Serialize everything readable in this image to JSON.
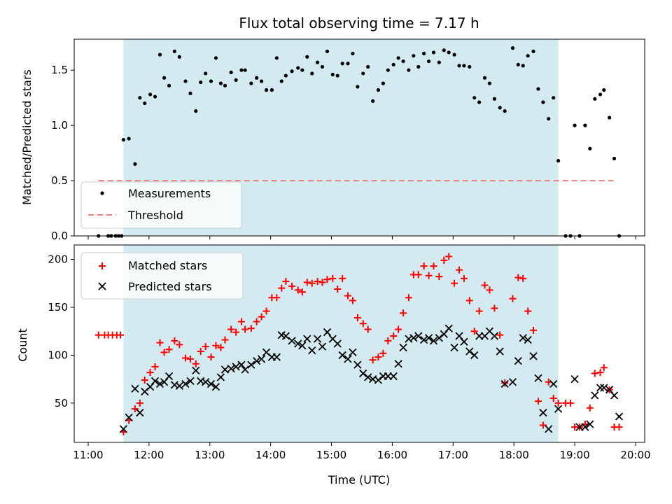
{
  "title": "Flux total observing time = 7.17 h",
  "colors": {
    "shade": "#d3eaf0",
    "measurement": "#000000",
    "threshold": "#f08080",
    "matched": "#ff0000",
    "predicted": "#000000"
  },
  "chart_data": [
    {
      "type": "scatter",
      "ylabel": "Matched/Predicted stars",
      "xlim": [
        10.77,
        20.15
      ],
      "ylim": [
        0,
        1.78
      ],
      "y_ticks": [
        0.0,
        0.5,
        1.0,
        1.5
      ],
      "y_tick_labels": [
        "0.0",
        "0.5",
        "1.0",
        "1.5"
      ],
      "legend": {
        "position": "lower-left",
        "items": [
          "Measurements",
          "Threshold"
        ]
      },
      "shaded_region": [
        11.58,
        18.73
      ],
      "threshold": {
        "name": "Threshold",
        "value": 0.5,
        "x_range": [
          11.17,
          19.67
        ]
      },
      "series": [
        {
          "name": "Measurements",
          "x": [
            11.17,
            11.33,
            11.38,
            11.45,
            11.5,
            11.55,
            11.58,
            11.67,
            11.77,
            11.85,
            11.93,
            12.02,
            12.1,
            12.18,
            12.25,
            12.33,
            12.42,
            12.5,
            12.6,
            12.68,
            12.77,
            12.85,
            12.93,
            13.02,
            13.1,
            13.18,
            13.25,
            13.35,
            13.43,
            13.52,
            13.58,
            13.68,
            13.77,
            13.85,
            13.93,
            14.02,
            14.1,
            14.18,
            14.25,
            14.35,
            14.45,
            14.52,
            14.6,
            14.68,
            14.77,
            14.85,
            14.93,
            15.02,
            15.1,
            15.18,
            15.27,
            15.35,
            15.43,
            15.52,
            15.6,
            15.68,
            15.77,
            15.85,
            15.93,
            16.02,
            16.1,
            16.18,
            16.27,
            16.35,
            16.43,
            16.52,
            16.6,
            16.68,
            16.77,
            16.85,
            16.93,
            17.02,
            17.1,
            17.18,
            17.27,
            17.35,
            17.43,
            17.52,
            17.6,
            17.68,
            17.77,
            17.85,
            17.98,
            18.07,
            18.15,
            18.23,
            18.32,
            18.4,
            18.48,
            18.57,
            18.65,
            18.73,
            18.85,
            18.93,
            19.0,
            19.08,
            19.17,
            19.25,
            19.33,
            19.42,
            19.48,
            19.57,
            19.65,
            19.73
          ],
          "y": [
            0.0,
            0.0,
            0.0,
            0.0,
            0.0,
            0.0,
            0.87,
            0.88,
            0.65,
            1.25,
            1.2,
            1.28,
            1.26,
            1.64,
            1.43,
            1.36,
            1.67,
            1.62,
            1.4,
            1.29,
            1.13,
            1.39,
            1.47,
            1.4,
            1.61,
            1.38,
            1.36,
            1.48,
            1.41,
            1.5,
            1.5,
            1.38,
            1.43,
            1.4,
            1.32,
            1.32,
            1.61,
            1.4,
            1.45,
            1.49,
            1.52,
            1.5,
            1.62,
            1.47,
            1.57,
            1.53,
            1.67,
            1.46,
            1.45,
            1.56,
            1.56,
            1.65,
            1.35,
            1.47,
            1.53,
            1.22,
            1.32,
            1.38,
            1.5,
            1.55,
            1.61,
            1.58,
            1.5,
            1.63,
            1.53,
            1.65,
            1.58,
            1.66,
            1.57,
            1.68,
            1.66,
            1.64,
            1.54,
            1.54,
            1.53,
            1.25,
            1.21,
            1.43,
            1.38,
            1.24,
            1.16,
            1.13,
            1.7,
            1.55,
            1.54,
            1.63,
            1.67,
            1.33,
            1.21,
            1.06,
            1.25,
            0.68,
            0.0,
            0.0,
            1.0,
            0.0,
            1.0,
            0.79,
            1.24,
            1.28,
            1.32,
            1.07,
            0.7,
            0.0
          ]
        }
      ]
    },
    {
      "type": "scatter",
      "xlabel": "Time (UTC)",
      "ylabel": "Count",
      "xlim": [
        10.77,
        20.15
      ],
      "ylim": [
        9,
        215
      ],
      "x_ticks": [
        11,
        12,
        13,
        14,
        15,
        16,
        17,
        18,
        19,
        20
      ],
      "x_tick_labels": [
        "11:00",
        "12:00",
        "13:00",
        "14:00",
        "15:00",
        "16:00",
        "17:00",
        "18:00",
        "19:00",
        "20:00"
      ],
      "y_ticks": [
        50,
        100,
        150,
        200
      ],
      "y_tick_labels": [
        "50",
        "100",
        "150",
        "200"
      ],
      "legend": {
        "position": "upper-left",
        "items": [
          "Matched stars",
          "Predicted stars"
        ]
      },
      "shaded_region": [
        11.58,
        18.73
      ],
      "series": [
        {
          "name": "Matched stars",
          "x": [
            11.17,
            11.27,
            11.33,
            11.4,
            11.47,
            11.53,
            11.58,
            11.67,
            11.77,
            11.85,
            11.93,
            12.02,
            12.1,
            12.18,
            12.25,
            12.33,
            12.42,
            12.5,
            12.6,
            12.68,
            12.77,
            12.85,
            12.93,
            13.02,
            13.1,
            13.18,
            13.25,
            13.35,
            13.43,
            13.52,
            13.58,
            13.68,
            13.77,
            13.85,
            13.93,
            14.02,
            14.1,
            14.18,
            14.25,
            14.35,
            14.45,
            14.52,
            14.6,
            14.68,
            14.77,
            14.85,
            14.93,
            15.02,
            15.1,
            15.18,
            15.27,
            15.35,
            15.43,
            15.52,
            15.6,
            15.68,
            15.77,
            15.85,
            15.93,
            16.02,
            16.1,
            16.18,
            16.27,
            16.35,
            16.43,
            16.52,
            16.6,
            16.68,
            16.77,
            16.85,
            16.93,
            17.02,
            17.1,
            17.18,
            17.27,
            17.35,
            17.43,
            17.52,
            17.6,
            17.68,
            17.77,
            17.85,
            17.98,
            18.07,
            18.15,
            18.23,
            18.32,
            18.4,
            18.48,
            18.57,
            18.65,
            18.73,
            18.85,
            18.93,
            19.0,
            19.08,
            19.17,
            19.25,
            19.33,
            19.42,
            19.48,
            19.57,
            19.65,
            19.73
          ],
          "y": [
            121,
            121,
            121,
            121,
            121,
            121,
            20,
            32,
            44,
            50,
            74,
            82,
            88,
            113,
            103,
            106,
            115,
            111,
            97,
            96,
            91,
            104,
            109,
            98,
            110,
            108,
            116,
            127,
            124,
            135,
            127,
            128,
            135,
            140,
            146,
            160,
            160,
            170,
            177,
            172,
            168,
            166,
            176,
            175,
            177,
            176,
            179,
            180,
            169,
            180,
            162,
            157,
            139,
            133,
            127,
            95,
            98,
            102,
            115,
            120,
            127,
            144,
            160,
            184,
            184,
            193,
            183,
            193,
            182,
            199,
            203,
            175,
            189,
            180,
            157,
            125,
            146,
            173,
            168,
            149,
            121,
            71,
            159,
            181,
            180,
            146,
            126,
            52,
            27,
            72,
            55,
            50,
            50,
            50,
            25,
            25,
            28,
            45,
            81,
            82,
            87,
            64,
            25,
            25
          ]
        },
        {
          "name": "Predicted stars",
          "x": [
            11.58,
            11.67,
            11.77,
            11.85,
            11.93,
            12.02,
            12.1,
            12.18,
            12.25,
            12.33,
            12.42,
            12.5,
            12.6,
            12.68,
            12.77,
            12.85,
            12.93,
            13.02,
            13.1,
            13.18,
            13.25,
            13.35,
            13.43,
            13.52,
            13.58,
            13.68,
            13.77,
            13.85,
            13.93,
            14.02,
            14.1,
            14.18,
            14.25,
            14.35,
            14.45,
            14.52,
            14.6,
            14.68,
            14.77,
            14.85,
            14.93,
            15.02,
            15.1,
            15.18,
            15.27,
            15.35,
            15.43,
            15.52,
            15.6,
            15.68,
            15.77,
            15.85,
            15.93,
            16.02,
            16.1,
            16.18,
            16.27,
            16.35,
            16.43,
            16.52,
            16.6,
            16.68,
            16.77,
            16.85,
            16.93,
            17.02,
            17.1,
            17.18,
            17.27,
            17.35,
            17.43,
            17.52,
            17.6,
            17.68,
            17.77,
            17.85,
            17.98,
            18.07,
            18.15,
            18.23,
            18.32,
            18.4,
            18.48,
            18.57,
            18.65,
            18.73,
            19.0,
            19.08,
            19.17,
            19.25,
            19.33,
            19.42,
            19.48,
            19.57,
            19.65,
            19.73
          ],
          "y": [
            23,
            35,
            65,
            40,
            62,
            67,
            73,
            70,
            72,
            78,
            69,
            68,
            70,
            73,
            84,
            73,
            72,
            70,
            67,
            77,
            85,
            86,
            88,
            90,
            85,
            90,
            94,
            96,
            103,
            98,
            98,
            121,
            120,
            115,
            112,
            110,
            117,
            105,
            117,
            109,
            124,
            117,
            112,
            100,
            96,
            103,
            90,
            81,
            77,
            75,
            74,
            78,
            78,
            78,
            91,
            108,
            117,
            118,
            120,
            116,
            118,
            115,
            118,
            122,
            128,
            108,
            120,
            114,
            104,
            100,
            120,
            120,
            125,
            120,
            104,
            70,
            72,
            94,
            118,
            116,
            99,
            76,
            40,
            23,
            70,
            44,
            75,
            25,
            25,
            28,
            58,
            66,
            66,
            64,
            58,
            36
          ]
        }
      ]
    }
  ]
}
